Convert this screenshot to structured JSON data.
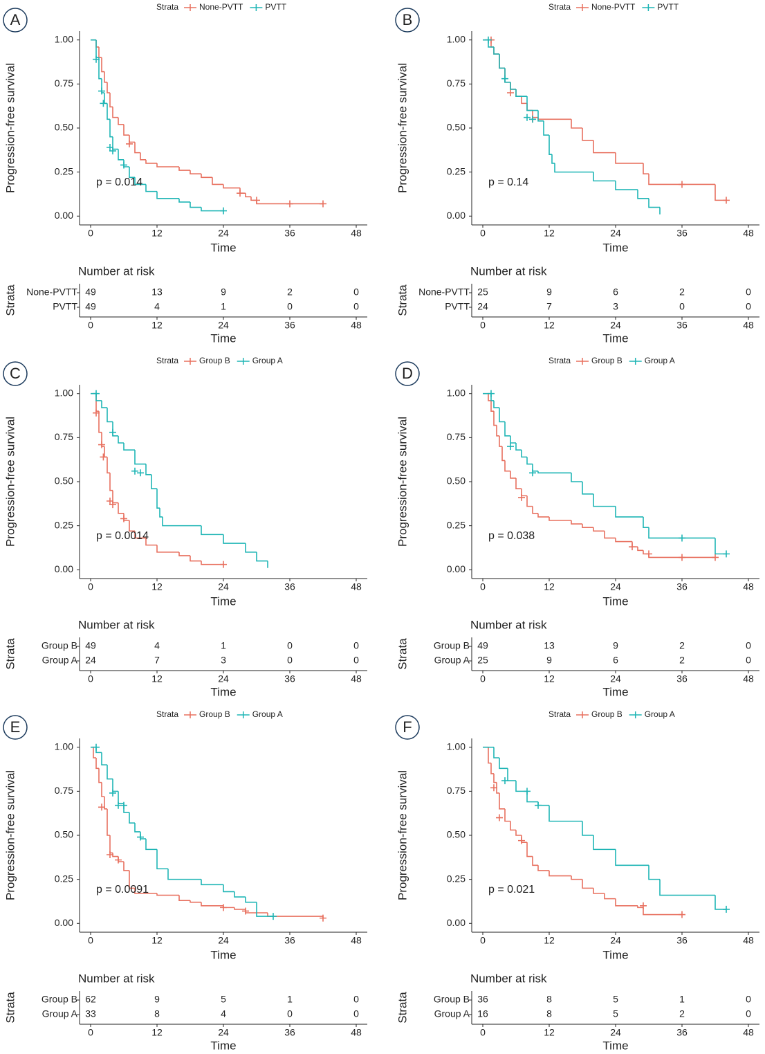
{
  "chart_data": [
    {
      "type": "step",
      "panel_label": "A",
      "legend_title": "Strata",
      "ylabel": "Progression-free survival",
      "xlabel": "Time",
      "annotation": "p = 0.014",
      "xlim": [
        -2,
        50
      ],
      "ylim": [
        -0.05,
        1.05
      ],
      "xticks": [
        0,
        12,
        24,
        36,
        48
      ],
      "yticks": [
        {
          "value": 0,
          "label": "0.00"
        },
        {
          "value": 0.25,
          "label": "0.25"
        },
        {
          "value": 0.5,
          "label": "0.50"
        },
        {
          "value": 0.75,
          "label": "0.75"
        },
        {
          "value": 1,
          "label": "1.00"
        }
      ],
      "risk_title": "Number at risk",
      "risk_ylabel": "Strata",
      "series": [
        {
          "name": "None-PVTT",
          "color": "#e8705f",
          "x": [
            0,
            1,
            1.5,
            2,
            2.5,
            3,
            3.5,
            4,
            5,
            6,
            7,
            8,
            9,
            10,
            12,
            16,
            18,
            20,
            22,
            24,
            27,
            28,
            29,
            30,
            42
          ],
          "values": [
            1,
            0.96,
            0.9,
            0.82,
            0.76,
            0.7,
            0.62,
            0.56,
            0.52,
            0.46,
            0.42,
            0.36,
            0.32,
            0.3,
            0.28,
            0.26,
            0.24,
            0.22,
            0.18,
            0.16,
            0.13,
            0.11,
            0.09,
            0.07,
            0.07
          ],
          "censor_x": [
            7,
            27,
            30,
            36,
            42
          ],
          "censor_values": [
            0.41,
            0.13,
            0.09,
            0.07,
            0.07
          ],
          "at_risk": [
            49,
            13,
            9,
            2,
            0
          ]
        },
        {
          "name": "PVTT",
          "color": "#1fb5b5",
          "x": [
            0,
            1,
            1.5,
            2,
            2.5,
            3,
            3.5,
            4,
            5,
            6,
            7,
            8,
            10,
            12,
            16,
            18,
            20,
            24
          ],
          "values": [
            1,
            0.9,
            0.78,
            0.7,
            0.64,
            0.55,
            0.45,
            0.38,
            0.32,
            0.28,
            0.22,
            0.18,
            0.14,
            0.1,
            0.08,
            0.05,
            0.03,
            0.03
          ],
          "censor_x": [
            1,
            2,
            2.3,
            3.5,
            4,
            6,
            24
          ],
          "censor_values": [
            0.89,
            0.71,
            0.64,
            0.39,
            0.37,
            0.29,
            0.03
          ],
          "at_risk": [
            49,
            4,
            1,
            0,
            0
          ]
        }
      ]
    },
    {
      "type": "step",
      "panel_label": "B",
      "legend_title": "Strata",
      "ylabel": "Progression-free survival",
      "xlabel": "Time",
      "annotation": "p = 0.14",
      "xlim": [
        -2,
        50
      ],
      "ylim": [
        -0.05,
        1.05
      ],
      "xticks": [
        0,
        12,
        24,
        36,
        48
      ],
      "yticks": [
        {
          "value": 0,
          "label": "0.00"
        },
        {
          "value": 0.25,
          "label": "0.25"
        },
        {
          "value": 0.5,
          "label": "0.50"
        },
        {
          "value": 0.75,
          "label": "0.75"
        },
        {
          "value": 1,
          "label": "1.00"
        }
      ],
      "risk_title": "Number at risk",
      "risk_ylabel": "Strata",
      "series": [
        {
          "name": "None-PVTT",
          "color": "#e8705f",
          "x": [
            0,
            1.5,
            2,
            3,
            4,
            5,
            6,
            7,
            8,
            9,
            10,
            16,
            18,
            20,
            24,
            29,
            30,
            42,
            44
          ],
          "values": [
            1,
            0.96,
            0.92,
            0.84,
            0.76,
            0.72,
            0.68,
            0.64,
            0.6,
            0.56,
            0.55,
            0.5,
            0.43,
            0.36,
            0.3,
            0.24,
            0.18,
            0.09,
            0.09
          ],
          "censor_x": [
            1.5,
            5,
            9,
            36,
            44
          ],
          "censor_values": [
            1,
            0.7,
            0.55,
            0.18,
            0.09
          ],
          "at_risk": [
            25,
            9,
            6,
            2,
            0
          ]
        },
        {
          "name": "PVTT",
          "color": "#1fb5b5",
          "x": [
            0,
            1,
            2,
            3,
            4,
            5,
            6,
            8,
            10,
            11,
            12,
            12.5,
            13,
            20,
            24,
            28,
            30,
            32
          ],
          "values": [
            1,
            0.96,
            0.92,
            0.84,
            0.76,
            0.72,
            0.68,
            0.6,
            0.54,
            0.46,
            0.35,
            0.3,
            0.25,
            0.2,
            0.15,
            0.1,
            0.05,
            0.01
          ],
          "censor_x": [
            1,
            4,
            8,
            9
          ],
          "censor_values": [
            1,
            0.78,
            0.56,
            0.55
          ],
          "at_risk": [
            24,
            7,
            3,
            0,
            0
          ]
        }
      ]
    },
    {
      "type": "step",
      "panel_label": "C",
      "legend_title": "Strata",
      "ylabel": "Progression-free survival",
      "xlabel": "Time",
      "annotation": "p = 0.0014",
      "xlim": [
        -2,
        50
      ],
      "ylim": [
        -0.05,
        1.05
      ],
      "xticks": [
        0,
        12,
        24,
        36,
        48
      ],
      "yticks": [
        {
          "value": 0,
          "label": "0.00"
        },
        {
          "value": 0.25,
          "label": "0.25"
        },
        {
          "value": 0.5,
          "label": "0.50"
        },
        {
          "value": 0.75,
          "label": "0.75"
        },
        {
          "value": 1,
          "label": "1.00"
        }
      ],
      "risk_title": "Number at risk",
      "risk_ylabel": "Strata",
      "series": [
        {
          "name": "Group B",
          "color": "#e8705f",
          "x": [
            0,
            1,
            1.5,
            2,
            2.5,
            3,
            3.5,
            4,
            5,
            6,
            7,
            8,
            10,
            12,
            16,
            18,
            20,
            24
          ],
          "values": [
            1,
            0.9,
            0.78,
            0.7,
            0.64,
            0.55,
            0.45,
            0.38,
            0.32,
            0.28,
            0.22,
            0.18,
            0.14,
            0.1,
            0.08,
            0.05,
            0.03,
            0.03
          ],
          "censor_x": [
            1,
            2,
            2.3,
            3.5,
            4,
            6,
            24
          ],
          "censor_values": [
            0.89,
            0.71,
            0.64,
            0.39,
            0.37,
            0.29,
            0.03
          ],
          "at_risk": [
            49,
            4,
            1,
            0,
            0
          ]
        },
        {
          "name": "Group A",
          "color": "#1fb5b5",
          "x": [
            0,
            1,
            2,
            3,
            4,
            5,
            6,
            8,
            10,
            11,
            12,
            12.5,
            13,
            20,
            24,
            28,
            30,
            32
          ],
          "values": [
            1,
            0.96,
            0.92,
            0.84,
            0.76,
            0.72,
            0.68,
            0.6,
            0.54,
            0.46,
            0.35,
            0.3,
            0.25,
            0.2,
            0.15,
            0.1,
            0.05,
            0.01
          ],
          "censor_x": [
            1,
            4,
            8,
            9
          ],
          "censor_values": [
            1,
            0.78,
            0.56,
            0.55
          ],
          "at_risk": [
            24,
            7,
            3,
            0,
            0
          ]
        }
      ]
    },
    {
      "type": "step",
      "panel_label": "D",
      "legend_title": "Strata",
      "ylabel": "Progression-free survival",
      "xlabel": "Time",
      "annotation": "p = 0.038",
      "xlim": [
        -2,
        50
      ],
      "ylim": [
        -0.05,
        1.05
      ],
      "xticks": [
        0,
        12,
        24,
        36,
        48
      ],
      "yticks": [
        {
          "value": 0,
          "label": "0.00"
        },
        {
          "value": 0.25,
          "label": "0.25"
        },
        {
          "value": 0.5,
          "label": "0.50"
        },
        {
          "value": 0.75,
          "label": "0.75"
        },
        {
          "value": 1,
          "label": "1.00"
        }
      ],
      "risk_title": "Number at risk",
      "risk_ylabel": "Strata",
      "series": [
        {
          "name": "Group B",
          "color": "#e8705f",
          "x": [
            0,
            1,
            1.5,
            2,
            2.5,
            3,
            3.5,
            4,
            5,
            6,
            7,
            8,
            9,
            10,
            12,
            16,
            18,
            20,
            22,
            24,
            27,
            28,
            29,
            30,
            42
          ],
          "values": [
            1,
            0.96,
            0.9,
            0.82,
            0.76,
            0.7,
            0.62,
            0.56,
            0.52,
            0.46,
            0.42,
            0.36,
            0.32,
            0.3,
            0.28,
            0.26,
            0.24,
            0.22,
            0.18,
            0.16,
            0.13,
            0.11,
            0.09,
            0.07,
            0.07
          ],
          "censor_x": [
            7,
            27,
            30,
            36,
            42
          ],
          "censor_values": [
            0.41,
            0.13,
            0.09,
            0.07,
            0.07
          ],
          "at_risk": [
            49,
            13,
            9,
            2,
            0
          ]
        },
        {
          "name": "Group A",
          "color": "#1fb5b5",
          "x": [
            0,
            1.5,
            2,
            3,
            4,
            5,
            6,
            7,
            8,
            9,
            10,
            16,
            18,
            20,
            24,
            29,
            30,
            42,
            44
          ],
          "values": [
            1,
            0.96,
            0.92,
            0.84,
            0.76,
            0.72,
            0.68,
            0.64,
            0.6,
            0.56,
            0.55,
            0.5,
            0.43,
            0.36,
            0.3,
            0.24,
            0.18,
            0.09,
            0.09
          ],
          "censor_x": [
            1.5,
            5,
            9,
            36,
            44
          ],
          "censor_values": [
            1,
            0.7,
            0.55,
            0.18,
            0.09
          ],
          "at_risk": [
            25,
            9,
            6,
            2,
            0
          ]
        }
      ]
    },
    {
      "type": "step",
      "panel_label": "E",
      "legend_title": "Strata",
      "ylabel": "Progression-free survival",
      "xlabel": "Time",
      "annotation": "p = 0.0091",
      "xlim": [
        -2,
        50
      ],
      "ylim": [
        -0.05,
        1.05
      ],
      "xticks": [
        0,
        12,
        24,
        36,
        48
      ],
      "yticks": [
        {
          "value": 0,
          "label": "0.00"
        },
        {
          "value": 0.25,
          "label": "0.25"
        },
        {
          "value": 0.5,
          "label": "0.50"
        },
        {
          "value": 0.75,
          "label": "0.75"
        },
        {
          "value": 1,
          "label": "1.00"
        }
      ],
      "risk_title": "Number at risk",
      "risk_ylabel": "Strata",
      "series": [
        {
          "name": "Group B",
          "color": "#e8705f",
          "x": [
            0,
            0.5,
            1,
            1.5,
            2,
            2.5,
            3,
            3.5,
            4,
            5,
            6,
            7,
            8,
            12,
            16,
            18,
            20,
            24,
            26,
            28,
            32,
            42
          ],
          "values": [
            1,
            0.94,
            0.88,
            0.8,
            0.72,
            0.65,
            0.5,
            0.4,
            0.38,
            0.35,
            0.3,
            0.2,
            0.17,
            0.16,
            0.13,
            0.12,
            0.1,
            0.09,
            0.08,
            0.06,
            0.04,
            0.03
          ],
          "censor_x": [
            2,
            3.5,
            5,
            24,
            28,
            42
          ],
          "censor_values": [
            0.66,
            0.39,
            0.36,
            0.09,
            0.07,
            0.03
          ],
          "at_risk": [
            62,
            9,
            5,
            1,
            0
          ]
        },
        {
          "name": "Group A",
          "color": "#1fb5b5",
          "x": [
            0,
            1,
            2,
            3,
            4,
            5,
            6,
            7,
            8,
            9,
            10,
            12,
            14,
            20,
            24,
            26,
            28,
            30,
            33
          ],
          "values": [
            1,
            0.97,
            0.9,
            0.82,
            0.75,
            0.68,
            0.63,
            0.57,
            0.52,
            0.48,
            0.42,
            0.31,
            0.25,
            0.22,
            0.18,
            0.15,
            0.12,
            0.04,
            0.04
          ],
          "censor_x": [
            1,
            4,
            5,
            6,
            9,
            33
          ],
          "censor_values": [
            1,
            0.74,
            0.67,
            0.67,
            0.49,
            0.04
          ],
          "at_risk": [
            33,
            8,
            4,
            0,
            0
          ]
        }
      ]
    },
    {
      "type": "step",
      "panel_label": "F",
      "legend_title": "Strata",
      "ylabel": "Progression-free survival",
      "xlabel": "Time",
      "annotation": "p = 0.021",
      "xlim": [
        -2,
        50
      ],
      "ylim": [
        -0.05,
        1.05
      ],
      "xticks": [
        0,
        12,
        24,
        36,
        48
      ],
      "yticks": [
        {
          "value": 0,
          "label": "0.00"
        },
        {
          "value": 0.25,
          "label": "0.25"
        },
        {
          "value": 0.5,
          "label": "0.50"
        },
        {
          "value": 0.75,
          "label": "0.75"
        },
        {
          "value": 1,
          "label": "1.00"
        }
      ],
      "risk_title": "Number at risk",
      "risk_ylabel": "Strata",
      "series": [
        {
          "name": "Group B",
          "color": "#e8705f",
          "x": [
            0,
            1,
            1.5,
            2,
            2.5,
            3,
            4,
            5,
            6,
            7,
            8,
            9,
            10,
            12,
            16,
            18,
            20,
            22,
            24,
            28,
            29,
            36
          ],
          "values": [
            1,
            0.91,
            0.85,
            0.8,
            0.74,
            0.65,
            0.58,
            0.53,
            0.5,
            0.46,
            0.38,
            0.33,
            0.3,
            0.27,
            0.25,
            0.2,
            0.17,
            0.14,
            0.1,
            0.09,
            0.05,
            0.05
          ],
          "censor_x": [
            2,
            3,
            7,
            29,
            36
          ],
          "censor_values": [
            0.77,
            0.6,
            0.47,
            0.1,
            0.05
          ],
          "at_risk": [
            36,
            8,
            5,
            1,
            0
          ]
        },
        {
          "name": "Group A",
          "color": "#1fb5b5",
          "x": [
            0,
            2,
            3,
            4.5,
            6,
            8,
            10,
            12,
            18,
            20,
            24,
            30,
            32,
            42,
            44
          ],
          "values": [
            1,
            0.94,
            0.88,
            0.81,
            0.75,
            0.69,
            0.67,
            0.58,
            0.5,
            0.42,
            0.33,
            0.25,
            0.16,
            0.08,
            0.08
          ],
          "censor_x": [
            4,
            8,
            10,
            44
          ],
          "censor_values": [
            0.81,
            0.75,
            0.67,
            0.08
          ],
          "at_risk": [
            16,
            8,
            5,
            2,
            0
          ]
        }
      ]
    }
  ]
}
